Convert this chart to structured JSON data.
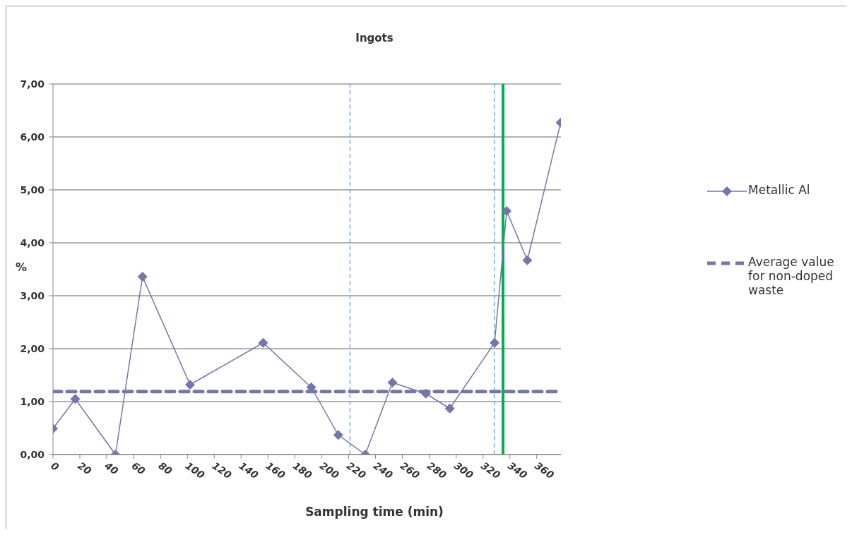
{
  "chart_data": {
    "type": "line",
    "title": "Ingots",
    "xlabel": "Sampling time (min)",
    "ylabel": "%",
    "xlim": [
      0,
      378
    ],
    "xticks": [
      0,
      20,
      40,
      60,
      80,
      100,
      120,
      140,
      160,
      180,
      200,
      220,
      240,
      260,
      280,
      300,
      320,
      340,
      360
    ],
    "ylim": [
      0,
      7
    ],
    "yticks": [
      {
        "value": 0,
        "label": "0,00"
      },
      {
        "value": 1,
        "label": "1,00"
      },
      {
        "value": 2,
        "label": "2,00"
      },
      {
        "value": 3,
        "label": "3,00"
      },
      {
        "value": 4,
        "label": "4,00"
      },
      {
        "value": 5,
        "label": "5,00"
      },
      {
        "value": 6,
        "label": "6,00"
      },
      {
        "value": 7,
        "label": "7,00"
      }
    ],
    "grid": "y",
    "legend": "right",
    "series": [
      {
        "name": "Metallic Al",
        "type": "line",
        "color": "#7276aa",
        "marker": "diamond",
        "line_style": "solid",
        "x": [
          0,
          16.6,
          46.5,
          66.6,
          102,
          156.4,
          192.2,
          212.3,
          232.4,
          252.6,
          277.5,
          295.3,
          328.6,
          337.6,
          353,
          377.8
        ],
        "values": [
          0.49,
          1.05,
          0,
          3.36,
          1.32,
          2.11,
          1.27,
          0.37,
          0,
          1.36,
          1.15,
          0.87,
          2.11,
          4.6,
          3.67,
          6.27
        ]
      },
      {
        "name": "Average value for non-doped waste",
        "type": "line",
        "color": "#7276aa",
        "marker": "none",
        "line_style": "dashed",
        "x": [
          0,
          378
        ],
        "values": [
          1.19,
          1.19
        ]
      }
    ],
    "ref_lines": [
      {
        "axis": "x",
        "value": 221,
        "color": "#5b9bd5",
        "line_style": "dashed"
      },
      {
        "axis": "x",
        "value": 328.5,
        "color": "#5b9bd5",
        "line_style": "dashed"
      },
      {
        "axis": "x",
        "value": 334.9,
        "color": "#00b050",
        "line_style": "solid"
      }
    ]
  }
}
